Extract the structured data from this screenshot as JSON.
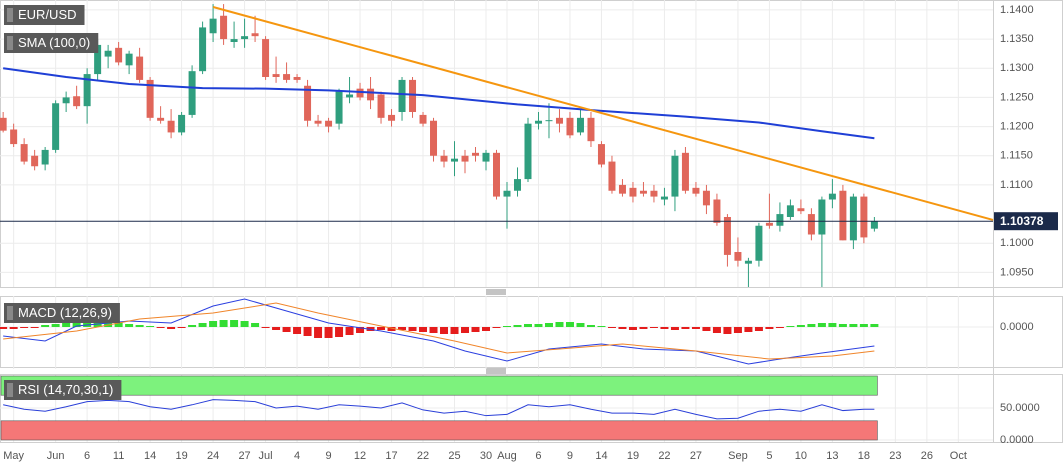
{
  "chart_data": [
    {
      "type": "candlestick",
      "title": "EUR/USD",
      "up_color": "#2f9e7e",
      "down_color": "#e0665a",
      "open": [
        1.1215,
        1.1195,
        1.117,
        1.115,
        1.1135,
        1.116,
        1.124,
        1.1252,
        1.1235,
        1.129,
        1.132,
        1.1335,
        1.1305,
        1.132,
        1.128,
        1.1215,
        1.121,
        1.119,
        1.122,
        1.1295,
        1.136,
        1.139,
        1.1345,
        1.135,
        1.136,
        1.135,
        1.129,
        1.129,
        1.1285,
        1.127,
        1.121,
        1.121,
        1.1205,
        1.125,
        1.1265,
        1.1265,
        1.1255,
        1.122,
        1.1225,
        1.128,
        1.122,
        1.121,
        1.115,
        1.114,
        1.115,
        1.1155,
        1.114,
        1.1155,
        1.108,
        1.109,
        1.111,
        1.1205,
        1.121,
        1.1215,
        1.1215,
        1.119,
        1.1215,
        1.117,
        1.114,
        1.11,
        1.1095,
        1.109,
        1.109,
        1.1075,
        1.108,
        1.1155,
        1.1095,
        1.109,
        1.1075,
        1.1045,
        1.0985,
        1.0965,
        1.097,
        1.1035,
        1.103,
        1.1045,
        1.106,
        1.105,
        1.1015,
        1.1075,
        1.109,
        1.1005,
        1.108,
        1.1025
      ],
      "high": [
        1.1225,
        1.1205,
        1.118,
        1.116,
        1.1165,
        1.1245,
        1.126,
        1.127,
        1.13,
        1.135,
        1.134,
        1.1345,
        1.133,
        1.1335,
        1.1285,
        1.1235,
        1.123,
        1.1225,
        1.1305,
        1.138,
        1.141,
        1.141,
        1.138,
        1.1385,
        1.139,
        1.1355,
        1.132,
        1.131,
        1.129,
        1.128,
        1.122,
        1.1215,
        1.1265,
        1.1285,
        1.1275,
        1.1285,
        1.126,
        1.123,
        1.1285,
        1.1285,
        1.1225,
        1.1215,
        1.116,
        1.1175,
        1.116,
        1.1165,
        1.116,
        1.116,
        1.1105,
        1.113,
        1.1215,
        1.1225,
        1.124,
        1.123,
        1.1225,
        1.123,
        1.1225,
        1.1175,
        1.115,
        1.111,
        1.1105,
        1.1105,
        1.11,
        1.1095,
        1.116,
        1.1165,
        1.1105,
        1.11,
        1.1085,
        1.105,
        1.101,
        1.0975,
        1.1035,
        1.1085,
        1.107,
        1.1075,
        1.1075,
        1.106,
        1.108,
        1.111,
        1.11,
        1.1085,
        1.1085,
        1.1045
      ],
      "low": [
        1.119,
        1.1165,
        1.1135,
        1.1125,
        1.1125,
        1.1155,
        1.1225,
        1.123,
        1.1205,
        1.128,
        1.13,
        1.1305,
        1.129,
        1.1275,
        1.121,
        1.1205,
        1.118,
        1.1185,
        1.1215,
        1.129,
        1.1345,
        1.134,
        1.1335,
        1.1335,
        1.1345,
        1.128,
        1.1275,
        1.1275,
        1.1275,
        1.12,
        1.12,
        1.119,
        1.1195,
        1.124,
        1.1245,
        1.123,
        1.1205,
        1.12,
        1.121,
        1.1215,
        1.12,
        1.114,
        1.113,
        1.1115,
        1.112,
        1.114,
        1.1125,
        1.1075,
        1.1025,
        1.108,
        1.1105,
        1.1195,
        1.118,
        1.119,
        1.118,
        1.1185,
        1.1165,
        1.113,
        1.1085,
        1.108,
        1.107,
        1.108,
        1.107,
        1.1065,
        1.1055,
        1.1085,
        1.108,
        1.105,
        1.103,
        1.096,
        1.096,
        1.0925,
        1.096,
        1.1025,
        1.102,
        1.104,
        1.105,
        1.1005,
        1.0925,
        1.106,
        1.1005,
        1.099,
        1.1,
        1.102
      ],
      "close": [
        1.1193,
        1.117,
        1.114,
        1.1132,
        1.116,
        1.124,
        1.125,
        1.1235,
        1.129,
        1.134,
        1.133,
        1.131,
        1.1325,
        1.128,
        1.1215,
        1.121,
        1.119,
        1.122,
        1.1295,
        1.137,
        1.1385,
        1.135,
        1.135,
        1.1355,
        1.1355,
        1.1285,
        1.1285,
        1.128,
        1.128,
        1.121,
        1.1205,
        1.12,
        1.126,
        1.1255,
        1.125,
        1.1245,
        1.1215,
        1.121,
        1.128,
        1.1225,
        1.1205,
        1.115,
        1.114,
        1.1145,
        1.114,
        1.115,
        1.1155,
        1.108,
        1.109,
        1.111,
        1.1205,
        1.121,
        1.1211,
        1.1205,
        1.1185,
        1.1215,
        1.1175,
        1.1135,
        1.109,
        1.1085,
        1.108,
        1.1085,
        1.108,
        1.108,
        1.115,
        1.109,
        1.1085,
        1.1065,
        1.1035,
        1.098,
        1.097,
        1.097,
        1.103,
        1.103,
        1.105,
        1.1065,
        1.1055,
        1.1015,
        1.1075,
        1.1085,
        1.1005,
        1.108,
        1.101,
        1.1038
      ],
      "xlim": [
        -0.3,
        94.3
      ],
      "xticks": [
        {
          "value": 1,
          "label": "May"
        },
        {
          "value": 5,
          "label": "Jun"
        },
        {
          "value": 8,
          "label": "6"
        },
        {
          "value": 11,
          "label": "11"
        },
        {
          "value": 14,
          "label": "14"
        },
        {
          "value": 17,
          "label": "19"
        },
        {
          "value": 20,
          "label": "24"
        },
        {
          "value": 23,
          "label": "27"
        },
        {
          "value": 25,
          "label": "Jul"
        },
        {
          "value": 28,
          "label": "4"
        },
        {
          "value": 31,
          "label": "9"
        },
        {
          "value": 34,
          "label": "12"
        },
        {
          "value": 37,
          "label": "17"
        },
        {
          "value": 40,
          "label": "22"
        },
        {
          "value": 43,
          "label": "25"
        },
        {
          "value": 46,
          "label": "30"
        },
        {
          "value": 48,
          "label": "Aug"
        },
        {
          "value": 51,
          "label": "6"
        },
        {
          "value": 54,
          "label": "9"
        },
        {
          "value": 57,
          "label": "14"
        },
        {
          "value": 60,
          "label": "19"
        },
        {
          "value": 63,
          "label": "22"
        },
        {
          "value": 66,
          "label": "27"
        },
        {
          "value": 70,
          "label": "Sep"
        },
        {
          "value": 73,
          "label": "5"
        },
        {
          "value": 76,
          "label": "10"
        },
        {
          "value": 79,
          "label": "13"
        },
        {
          "value": 82,
          "label": "18"
        },
        {
          "value": 85,
          "label": "23"
        },
        {
          "value": 88,
          "label": "26"
        },
        {
          "value": 91,
          "label": "Oct"
        }
      ],
      "ylim": [
        1.0925,
        1.1417
      ],
      "yticks": [
        {
          "value": 1.095,
          "label": "1.0950"
        },
        {
          "value": 1.1,
          "label": "1.1000"
        },
        {
          "value": 1.11,
          "label": "1.1100"
        },
        {
          "value": 1.115,
          "label": "1.1150"
        },
        {
          "value": 1.12,
          "label": "1.1200"
        },
        {
          "value": 1.125,
          "label": "1.1250"
        },
        {
          "value": 1.13,
          "label": "1.1300"
        },
        {
          "value": 1.135,
          "label": "1.1350"
        },
        {
          "value": 1.14,
          "label": "1.1400"
        }
      ],
      "grid": true,
      "series": [
        {
          "name": "SMA (100,0)",
          "color": "#1f3fd6",
          "x": [
            0,
            6,
            12,
            19,
            25,
            31,
            40,
            49,
            57,
            65,
            72,
            78,
            83
          ],
          "values": [
            1.13,
            1.1285,
            1.1273,
            1.1266,
            1.1265,
            1.1262,
            1.1254,
            1.1238,
            1.1227,
            1.1217,
            1.1207,
            1.1192,
            1.118
          ]
        }
      ],
      "trendline": {
        "color": "#f5960f",
        "x": [
          20,
          94.3
        ],
        "values": [
          1.1405,
          1.104
        ]
      },
      "last_price": {
        "value": 1.10378,
        "color": "#1b2a4a"
      }
    },
    {
      "type": "macd",
      "title": "MACD (12,26,9)",
      "ylim": [
        -0.004,
        0.003
      ],
      "yticks": [
        {
          "value": 0,
          "label": "0.0000"
        }
      ],
      "histogram": {
        "up_color": "#33dd33",
        "down_color": "#e51c1c",
        "values": [
          -0.0002,
          -0.0002,
          -0.0001,
          -0.0001,
          0.0002,
          0.0003,
          0.0004,
          0.0006,
          0.0007,
          0.0007,
          0.0006,
          0.0005,
          0.0003,
          0.0002,
          0.0001,
          -0.0001,
          -0.0002,
          -0.0001,
          0.0002,
          0.0004,
          0.0006,
          0.0007,
          0.0007,
          0.0006,
          0.0004,
          -0.0001,
          -0.0003,
          -0.0005,
          -0.0007,
          -0.0009,
          -0.0011,
          -0.0011,
          -0.001,
          -0.0008,
          -0.0006,
          -0.0004,
          -0.0003,
          -0.0004,
          -0.0003,
          -0.0004,
          -0.0005,
          -0.0006,
          -0.0007,
          -0.0007,
          -0.0006,
          -0.0005,
          -0.0004,
          -0.0001,
          0.0001,
          0.0002,
          0.0003,
          0.0003,
          0.0004,
          0.0005,
          0.0005,
          0.0004,
          0.0002,
          0.0001,
          -0.0001,
          -0.0002,
          -0.0003,
          -0.0002,
          -0.0001,
          -0.0002,
          -0.0003,
          -0.0002,
          -0.0002,
          -0.0004,
          -0.0006,
          -0.0007,
          -0.0006,
          -0.0005,
          -0.0004,
          -0.0002,
          -0.0001,
          0.0001,
          0.0002,
          0.0003,
          0.0004,
          0.0004,
          0.0003,
          0.0003,
          0.0003,
          0.0003
        ]
      },
      "lines": [
        {
          "color": "#2b3fe0",
          "x": [
            0,
            4,
            7,
            12,
            16,
            20,
            23,
            27,
            31,
            36,
            41,
            44,
            48,
            52,
            57,
            61,
            66,
            71,
            74,
            78,
            83
          ],
          "values": [
            -0.0009,
            -0.0014,
            0.0001,
            0.0006,
            0.0004,
            0.0021,
            0.0028,
            0.0016,
            0.0004,
            -0.0004,
            -0.0014,
            -0.0024,
            -0.0034,
            -0.0022,
            -0.0017,
            -0.0022,
            -0.0024,
            -0.0037,
            -0.0032,
            -0.0026,
            -0.0019
          ]
        },
        {
          "color": "#f0852a",
          "x": [
            0,
            7,
            13,
            20,
            26,
            30,
            36,
            43,
            48,
            53,
            59,
            66,
            73,
            79,
            83
          ],
          "values": [
            -0.0012,
            -0.0004,
            0.0008,
            0.0014,
            0.0024,
            0.0014,
            0.0001,
            -0.0014,
            -0.0026,
            -0.0022,
            -0.0017,
            -0.0024,
            -0.0032,
            -0.0029,
            -0.0024
          ]
        }
      ]
    },
    {
      "type": "rsi",
      "title": "RSI (14,70,30,1)",
      "ylim": [
        0,
        100
      ],
      "yticks": [
        {
          "value": 50,
          "label": "50.0000"
        },
        {
          "value": 0,
          "label": "0.0000"
        }
      ],
      "bands": [
        {
          "from": 70,
          "to": 100,
          "color": "#7df27d"
        },
        {
          "from": 0,
          "to": 30,
          "color": "#f57777"
        }
      ],
      "line": {
        "color": "#2a3fd8",
        "x": [
          0,
          2,
          4,
          6,
          8,
          10,
          12,
          14,
          16,
          18,
          20,
          22,
          24,
          26,
          28,
          30,
          32,
          34,
          36,
          38,
          40,
          42,
          44,
          46,
          48,
          50,
          52,
          54,
          56,
          58,
          60,
          62,
          64,
          66,
          68,
          70,
          72,
          74,
          76,
          78,
          80,
          82,
          83
        ],
        "values": [
          55,
          48,
          45,
          52,
          60,
          62,
          60,
          52,
          48,
          55,
          63,
          62,
          60,
          50,
          53,
          48,
          55,
          53,
          50,
          58,
          47,
          42,
          45,
          38,
          40,
          55,
          52,
          55,
          48,
          42,
          42,
          40,
          48,
          40,
          33,
          34,
          45,
          48,
          45,
          55,
          46,
          48,
          48
        ]
      }
    }
  ]
}
